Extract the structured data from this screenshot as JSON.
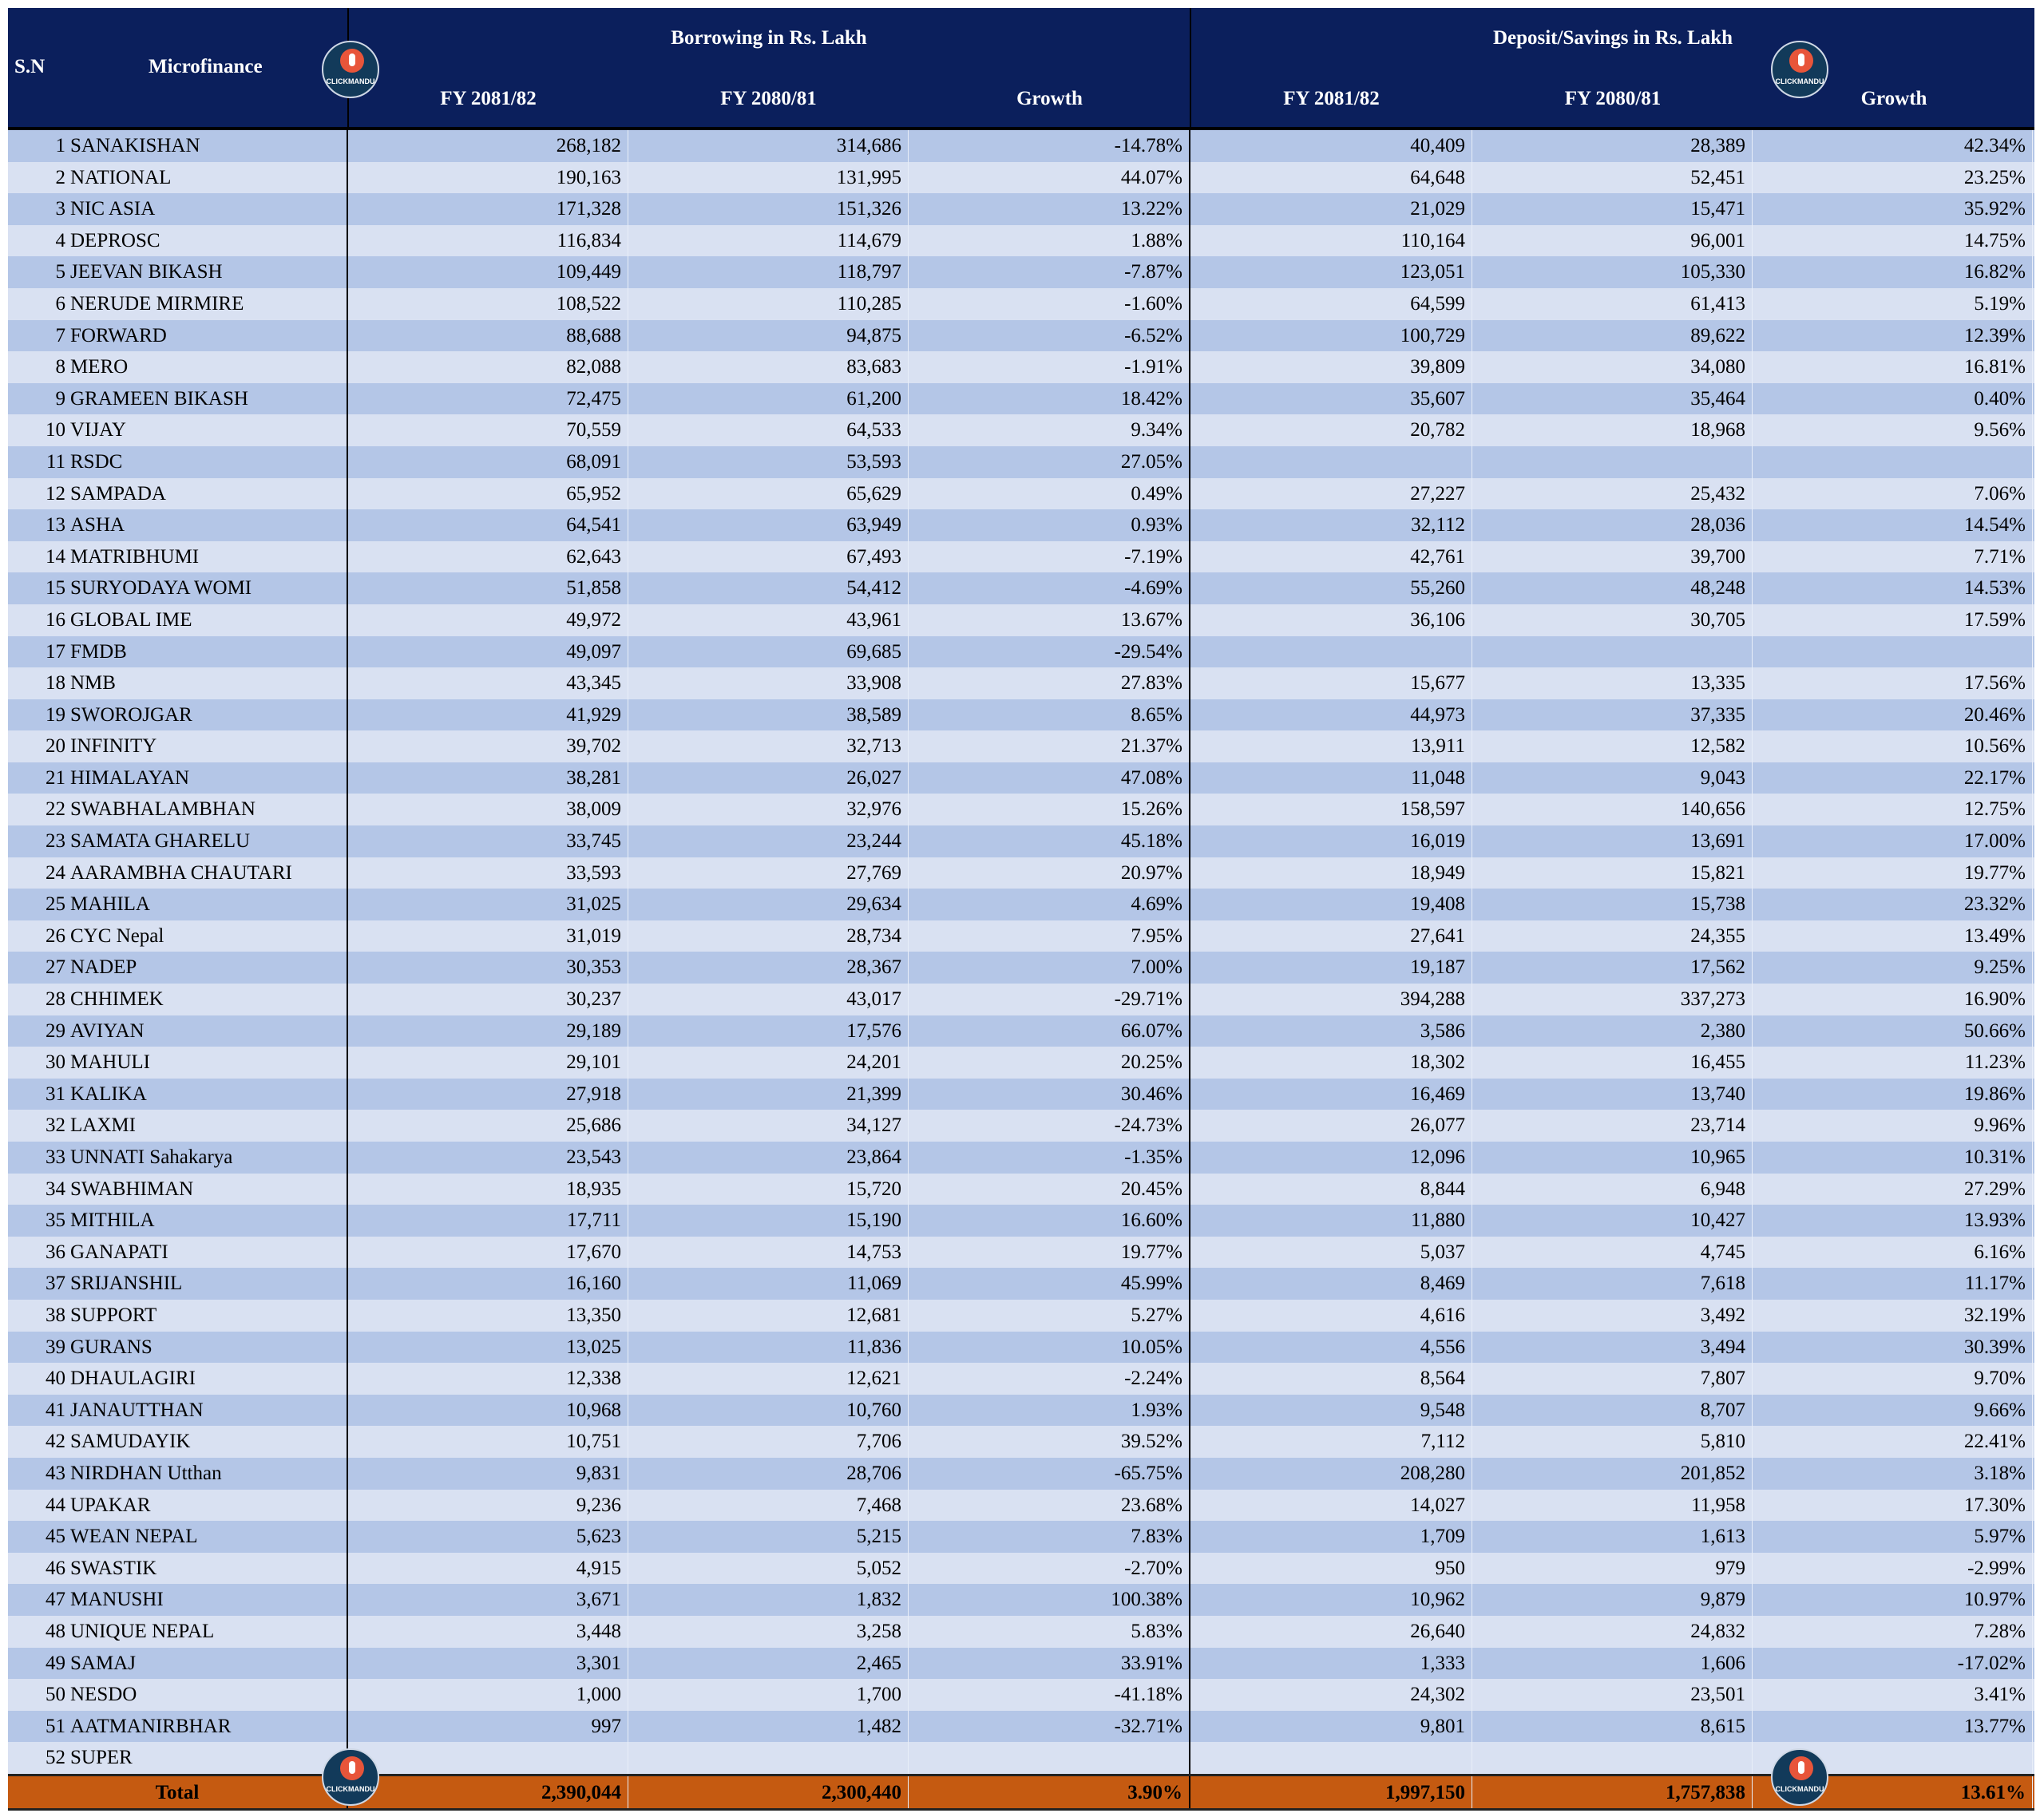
{
  "header": {
    "sn": "S.N",
    "microfinance": "Microfinance",
    "borrowing_group": "Borrowing in Rs. Lakh",
    "deposit_group": "Deposit/Savings in Rs. Lakh",
    "fy_current": "FY 2081/82",
    "fy_previous": "FY 2080/81",
    "growth": "Growth"
  },
  "logo_text": "CLICKMANDU",
  "colors": {
    "header_bg": "#0b1f5c",
    "row_odd": "#b4c6e7",
    "row_even": "#d9e1f2",
    "total_bg": "#c55a11"
  },
  "rows": [
    {
      "sn": "1",
      "name": "SANAKISHAN",
      "b1": "268,182",
      "b2": "314,686",
      "bg": "-14.78%",
      "d1": "40,409",
      "d2": "28,389",
      "dg": "42.34%"
    },
    {
      "sn": "2",
      "name": "NATIONAL",
      "b1": "190,163",
      "b2": "131,995",
      "bg": "44.07%",
      "d1": "64,648",
      "d2": "52,451",
      "dg": "23.25%"
    },
    {
      "sn": "3",
      "name": "NIC ASIA",
      "b1": "171,328",
      "b2": "151,326",
      "bg": "13.22%",
      "d1": "21,029",
      "d2": "15,471",
      "dg": "35.92%"
    },
    {
      "sn": "4",
      "name": "DEPROSC",
      "b1": "116,834",
      "b2": "114,679",
      "bg": "1.88%",
      "d1": "110,164",
      "d2": "96,001",
      "dg": "14.75%"
    },
    {
      "sn": "5",
      "name": "JEEVAN BIKASH",
      "b1": "109,449",
      "b2": "118,797",
      "bg": "-7.87%",
      "d1": "123,051",
      "d2": "105,330",
      "dg": "16.82%"
    },
    {
      "sn": "6",
      "name": "NERUDE MIRMIRE",
      "b1": "108,522",
      "b2": "110,285",
      "bg": "-1.60%",
      "d1": "64,599",
      "d2": "61,413",
      "dg": "5.19%"
    },
    {
      "sn": "7",
      "name": "FORWARD",
      "b1": "88,688",
      "b2": "94,875",
      "bg": "-6.52%",
      "d1": "100,729",
      "d2": "89,622",
      "dg": "12.39%"
    },
    {
      "sn": "8",
      "name": "MERO",
      "b1": "82,088",
      "b2": "83,683",
      "bg": "-1.91%",
      "d1": "39,809",
      "d2": "34,080",
      "dg": "16.81%"
    },
    {
      "sn": "9",
      "name": "GRAMEEN BIKASH",
      "b1": "72,475",
      "b2": "61,200",
      "bg": "18.42%",
      "d1": "35,607",
      "d2": "35,464",
      "dg": "0.40%"
    },
    {
      "sn": "10",
      "name": "VIJAY",
      "b1": "70,559",
      "b2": "64,533",
      "bg": "9.34%",
      "d1": "20,782",
      "d2": "18,968",
      "dg": "9.56%"
    },
    {
      "sn": "11",
      "name": "RSDC",
      "b1": "68,091",
      "b2": "53,593",
      "bg": "27.05%",
      "d1": "",
      "d2": "",
      "dg": ""
    },
    {
      "sn": "12",
      "name": "SAMPADA",
      "b1": "65,952",
      "b2": "65,629",
      "bg": "0.49%",
      "d1": "27,227",
      "d2": "25,432",
      "dg": "7.06%"
    },
    {
      "sn": "13",
      "name": "ASHA",
      "b1": "64,541",
      "b2": "63,949",
      "bg": "0.93%",
      "d1": "32,112",
      "d2": "28,036",
      "dg": "14.54%"
    },
    {
      "sn": "14",
      "name": "MATRIBHUMI",
      "b1": "62,643",
      "b2": "67,493",
      "bg": "-7.19%",
      "d1": "42,761",
      "d2": "39,700",
      "dg": "7.71%"
    },
    {
      "sn": "15",
      "name": "SURYODAYA WOMI",
      "b1": "51,858",
      "b2": "54,412",
      "bg": "-4.69%",
      "d1": "55,260",
      "d2": "48,248",
      "dg": "14.53%"
    },
    {
      "sn": "16",
      "name": "GLOBAL IME",
      "b1": "49,972",
      "b2": "43,961",
      "bg": "13.67%",
      "d1": "36,106",
      "d2": "30,705",
      "dg": "17.59%"
    },
    {
      "sn": "17",
      "name": "FMDB",
      "b1": "49,097",
      "b2": "69,685",
      "bg": "-29.54%",
      "d1": "",
      "d2": "",
      "dg": ""
    },
    {
      "sn": "18",
      "name": "NMB",
      "b1": "43,345",
      "b2": "33,908",
      "bg": "27.83%",
      "d1": "15,677",
      "d2": "13,335",
      "dg": "17.56%"
    },
    {
      "sn": "19",
      "name": "SWOROJGAR",
      "b1": "41,929",
      "b2": "38,589",
      "bg": "8.65%",
      "d1": "44,973",
      "d2": "37,335",
      "dg": "20.46%"
    },
    {
      "sn": "20",
      "name": "INFINITY",
      "b1": "39,702",
      "b2": "32,713",
      "bg": "21.37%",
      "d1": "13,911",
      "d2": "12,582",
      "dg": "10.56%"
    },
    {
      "sn": "21",
      "name": "HIMALAYAN",
      "b1": "38,281",
      "b2": "26,027",
      "bg": "47.08%",
      "d1": "11,048",
      "d2": "9,043",
      "dg": "22.17%"
    },
    {
      "sn": "22",
      "name": "SWABHALAMBHAN",
      "b1": "38,009",
      "b2": "32,976",
      "bg": "15.26%",
      "d1": "158,597",
      "d2": "140,656",
      "dg": "12.75%"
    },
    {
      "sn": "23",
      "name": "SAMATA GHARELU",
      "b1": "33,745",
      "b2": "23,244",
      "bg": "45.18%",
      "d1": "16,019",
      "d2": "13,691",
      "dg": "17.00%"
    },
    {
      "sn": "24",
      "name": "AARAMBHA CHAUTARI",
      "b1": "33,593",
      "b2": "27,769",
      "bg": "20.97%",
      "d1": "18,949",
      "d2": "15,821",
      "dg": "19.77%"
    },
    {
      "sn": "25",
      "name": "MAHILA",
      "b1": "31,025",
      "b2": "29,634",
      "bg": "4.69%",
      "d1": "19,408",
      "d2": "15,738",
      "dg": "23.32%"
    },
    {
      "sn": "26",
      "name": "CYC Nepal",
      "b1": "31,019",
      "b2": "28,734",
      "bg": "7.95%",
      "d1": "27,641",
      "d2": "24,355",
      "dg": "13.49%"
    },
    {
      "sn": "27",
      "name": "NADEP",
      "b1": "30,353",
      "b2": "28,367",
      "bg": "7.00%",
      "d1": "19,187",
      "d2": "17,562",
      "dg": "9.25%"
    },
    {
      "sn": "28",
      "name": "CHHIMEK",
      "b1": "30,237",
      "b2": "43,017",
      "bg": "-29.71%",
      "d1": "394,288",
      "d2": "337,273",
      "dg": "16.90%"
    },
    {
      "sn": "29",
      "name": "AVIYAN",
      "b1": "29,189",
      "b2": "17,576",
      "bg": "66.07%",
      "d1": "3,586",
      "d2": "2,380",
      "dg": "50.66%"
    },
    {
      "sn": "30",
      "name": "MAHULI",
      "b1": "29,101",
      "b2": "24,201",
      "bg": "20.25%",
      "d1": "18,302",
      "d2": "16,455",
      "dg": "11.23%"
    },
    {
      "sn": "31",
      "name": "KALIKA",
      "b1": "27,918",
      "b2": "21,399",
      "bg": "30.46%",
      "d1": "16,469",
      "d2": "13,740",
      "dg": "19.86%"
    },
    {
      "sn": "32",
      "name": "LAXMI",
      "b1": "25,686",
      "b2": "34,127",
      "bg": "-24.73%",
      "d1": "26,077",
      "d2": "23,714",
      "dg": "9.96%"
    },
    {
      "sn": "33",
      "name": "UNNATI Sahakarya",
      "b1": "23,543",
      "b2": "23,864",
      "bg": "-1.35%",
      "d1": "12,096",
      "d2": "10,965",
      "dg": "10.31%"
    },
    {
      "sn": "34",
      "name": "SWABHIMAN",
      "b1": "18,935",
      "b2": "15,720",
      "bg": "20.45%",
      "d1": "8,844",
      "d2": "6,948",
      "dg": "27.29%"
    },
    {
      "sn": "35",
      "name": "MITHILA",
      "b1": "17,711",
      "b2": "15,190",
      "bg": "16.60%",
      "d1": "11,880",
      "d2": "10,427",
      "dg": "13.93%"
    },
    {
      "sn": "36",
      "name": "GANAPATI",
      "b1": "17,670",
      "b2": "14,753",
      "bg": "19.77%",
      "d1": "5,037",
      "d2": "4,745",
      "dg": "6.16%"
    },
    {
      "sn": "37",
      "name": "SRIJANSHIL",
      "b1": "16,160",
      "b2": "11,069",
      "bg": "45.99%",
      "d1": "8,469",
      "d2": "7,618",
      "dg": "11.17%"
    },
    {
      "sn": "38",
      "name": "SUPPORT",
      "b1": "13,350",
      "b2": "12,681",
      "bg": "5.27%",
      "d1": "4,616",
      "d2": "3,492",
      "dg": "32.19%"
    },
    {
      "sn": "39",
      "name": "GURANS",
      "b1": "13,025",
      "b2": "11,836",
      "bg": "10.05%",
      "d1": "4,556",
      "d2": "3,494",
      "dg": "30.39%"
    },
    {
      "sn": "40",
      "name": "DHAULAGIRI",
      "b1": "12,338",
      "b2": "12,621",
      "bg": "-2.24%",
      "d1": "8,564",
      "d2": "7,807",
      "dg": "9.70%"
    },
    {
      "sn": "41",
      "name": "JANAUTTHAN",
      "b1": "10,968",
      "b2": "10,760",
      "bg": "1.93%",
      "d1": "9,548",
      "d2": "8,707",
      "dg": "9.66%"
    },
    {
      "sn": "42",
      "name": "SAMUDAYIK",
      "b1": "10,751",
      "b2": "7,706",
      "bg": "39.52%",
      "d1": "7,112",
      "d2": "5,810",
      "dg": "22.41%"
    },
    {
      "sn": "43",
      "name": "NIRDHAN Utthan",
      "b1": "9,831",
      "b2": "28,706",
      "bg": "-65.75%",
      "d1": "208,280",
      "d2": "201,852",
      "dg": "3.18%"
    },
    {
      "sn": "44",
      "name": "UPAKAR",
      "b1": "9,236",
      "b2": "7,468",
      "bg": "23.68%",
      "d1": "14,027",
      "d2": "11,958",
      "dg": "17.30%"
    },
    {
      "sn": "45",
      "name": "WEAN NEPAL",
      "b1": "5,623",
      "b2": "5,215",
      "bg": "7.83%",
      "d1": "1,709",
      "d2": "1,613",
      "dg": "5.97%"
    },
    {
      "sn": "46",
      "name": "SWASTIK",
      "b1": "4,915",
      "b2": "5,052",
      "bg": "-2.70%",
      "d1": "950",
      "d2": "979",
      "dg": "-2.99%"
    },
    {
      "sn": "47",
      "name": "MANUSHI",
      "b1": "3,671",
      "b2": "1,832",
      "bg": "100.38%",
      "d1": "10,962",
      "d2": "9,879",
      "dg": "10.97%"
    },
    {
      "sn": "48",
      "name": "UNIQUE NEPAL",
      "b1": "3,448",
      "b2": "3,258",
      "bg": "5.83%",
      "d1": "26,640",
      "d2": "24,832",
      "dg": "7.28%"
    },
    {
      "sn": "49",
      "name": "SAMAJ",
      "b1": "3,301",
      "b2": "2,465",
      "bg": "33.91%",
      "d1": "1,333",
      "d2": "1,606",
      "dg": "-17.02%"
    },
    {
      "sn": "50",
      "name": "NESDO",
      "b1": "1,000",
      "b2": "1,700",
      "bg": "-41.18%",
      "d1": "24,302",
      "d2": "23,501",
      "dg": "3.41%"
    },
    {
      "sn": "51",
      "name": "AATMANIRBHAR",
      "b1": "997",
      "b2": "1,482",
      "bg": "-32.71%",
      "d1": "9,801",
      "d2": "8,615",
      "dg": "13.77%"
    },
    {
      "sn": "52",
      "name": "SUPER",
      "b1": "",
      "b2": "",
      "bg": "",
      "d1": "",
      "d2": "",
      "dg": ""
    }
  ],
  "total": {
    "label": "Total",
    "b1": "2,390,044",
    "b2": "2,300,440",
    "bg": "3.90%",
    "d1": "1,997,150",
    "d2": "1,757,838",
    "dg": "13.61%"
  }
}
